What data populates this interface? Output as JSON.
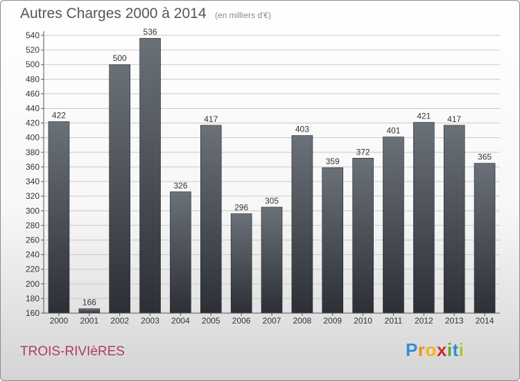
{
  "chart_data": {
    "type": "bar",
    "title": "Autres Charges 2000 à 2014",
    "subtitle": "(en milliers d'€)",
    "categories": [
      "2000",
      "2001",
      "2002",
      "2003",
      "2004",
      "2005",
      "2006",
      "2007",
      "2008",
      "2009",
      "2010",
      "2011",
      "2012",
      "2013",
      "2014"
    ],
    "values": [
      422,
      166,
      500,
      536,
      326,
      417,
      296,
      305,
      403,
      359,
      372,
      401,
      421,
      417,
      365
    ],
    "ylim": [
      160,
      540
    ],
    "yticks": [
      160,
      180,
      200,
      220,
      240,
      260,
      280,
      300,
      320,
      340,
      360,
      380,
      400,
      420,
      440,
      460,
      480,
      500,
      520,
      540
    ],
    "grid": true,
    "legend": "none",
    "xlabel": "",
    "ylabel": ""
  },
  "footer": {
    "commune": "TROIS-RIVIèRES",
    "logo_letters": [
      "P",
      "r",
      "o",
      "x",
      "i",
      "t",
      "i"
    ]
  },
  "colors": {
    "bar_top": "#6b7178",
    "bar_bottom": "#2c3036",
    "grid": "#c8c8c8",
    "commune": "#b03a6a",
    "logo": [
      "#2f8fd8",
      "#f08a1c",
      "#f2b21a",
      "#d3262c",
      "#59a830",
      "#2f8fd8",
      "#a3c92c"
    ]
  }
}
